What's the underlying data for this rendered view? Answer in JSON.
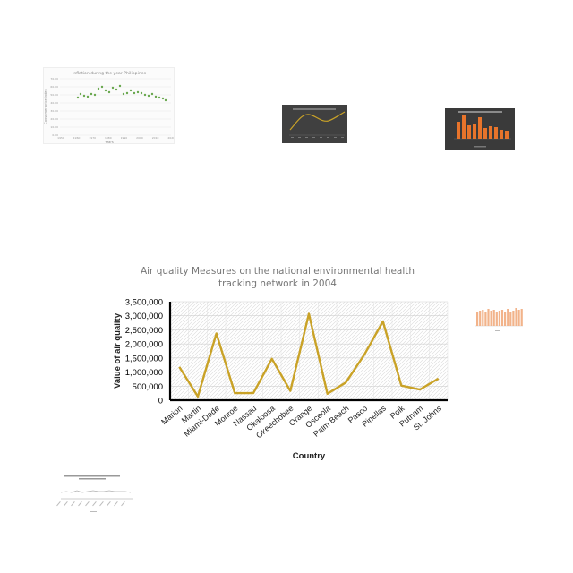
{
  "thumbnails": [
    {
      "title": "Inflation during the year Philippines",
      "xlabel": "Years",
      "ylabel": "Consumer price index",
      "xticks": [
        "1950",
        "1960",
        "1970",
        "1980",
        "1990",
        "2000",
        "2010",
        "2020"
      ],
      "yticks": [
        "70.00",
        "60.00",
        "50.00",
        "40.00",
        "30.00",
        "20.00",
        "10.00",
        "0.00"
      ],
      "point_color": "#6aa84f",
      "background": "#fbfbfb"
    },
    {
      "line_color": "#c9a227",
      "background": "#404040"
    },
    {
      "bar_color": "#e8742b",
      "background": "#3a3a3a"
    },
    {
      "bar_color": "#f2b38a",
      "background": "#ffffff"
    },
    {
      "line_color": "#b0b0b0",
      "background": "#ffffff"
    }
  ],
  "chart_data": {
    "type": "line",
    "title_lines": [
      "Air quality Measures on the national environmental health",
      "tracking network in 2004"
    ],
    "xlabel": "Country",
    "ylabel": "Value of air quality",
    "categories": [
      "Marion",
      "Martin",
      "Miami-Dade",
      "Monroe",
      "Nassau",
      "Okaloosa",
      "Okeechobee",
      "Orange",
      "Osceola",
      "Palm Beach",
      "Pasco",
      "Pinellas",
      "Polk",
      "Putnam",
      "St. Johns"
    ],
    "values": [
      1180000,
      130000,
      2370000,
      250000,
      250000,
      1470000,
      330000,
      3070000,
      230000,
      630000,
      1620000,
      2800000,
      520000,
      380000,
      770000
    ],
    "ylim": [
      0,
      3500000
    ],
    "yticks": [
      0,
      500000,
      1000000,
      1500000,
      2000000,
      2500000,
      3000000,
      3500000
    ],
    "ytick_labels": [
      "0",
      "500,000",
      "1,000,000",
      "1,500,000",
      "2,000,000",
      "2,500,000",
      "3,000,000",
      "3,500,000"
    ],
    "line_color": "#c9a227",
    "grid": "hatched",
    "legend": "none"
  }
}
